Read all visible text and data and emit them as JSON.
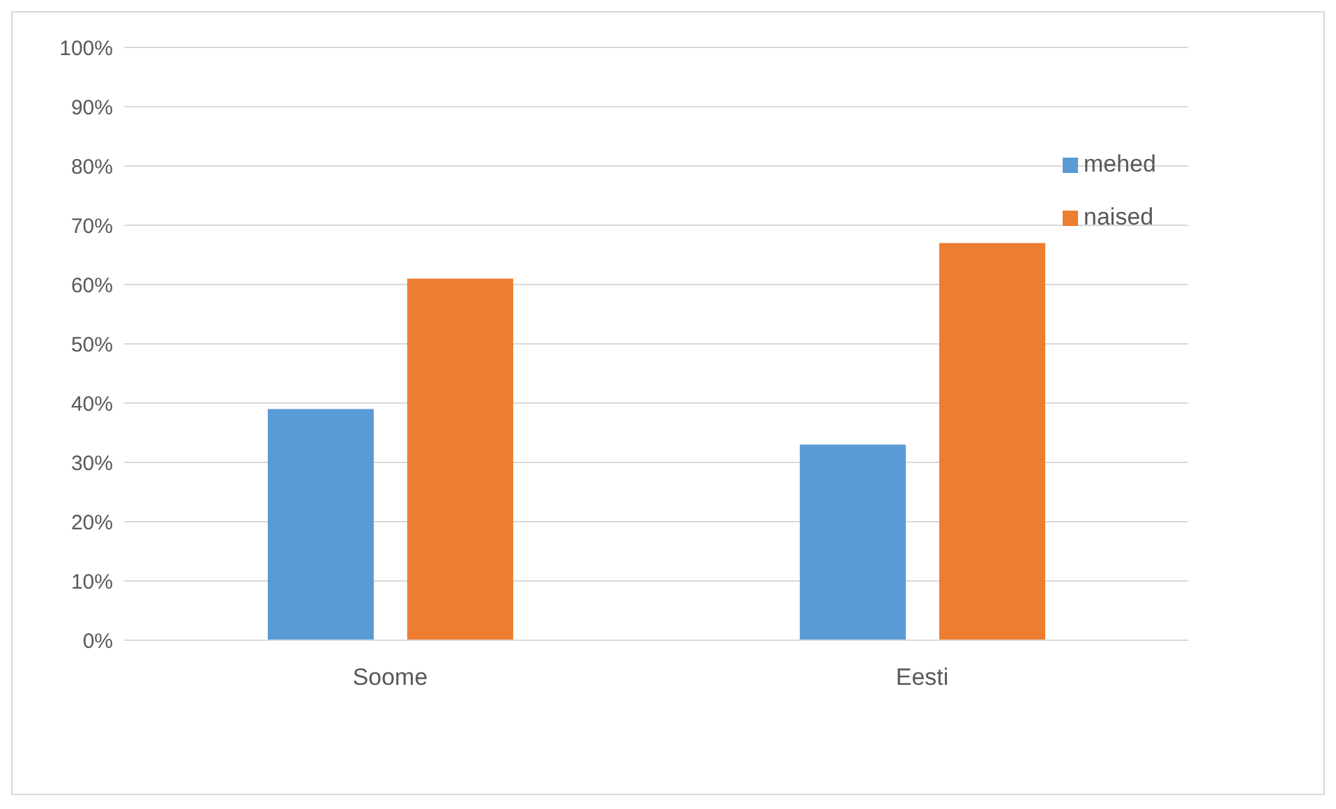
{
  "chart_data": {
    "type": "bar",
    "categories": [
      "Soome",
      "Eesti"
    ],
    "series": [
      {
        "name": "mehed",
        "color": "#5b9bd5",
        "values": [
          39,
          33
        ]
      },
      {
        "name": "naised",
        "color": "#ed7d31",
        "values": [
          61,
          67
        ]
      }
    ],
    "ylim": [
      0,
      100
    ],
    "yticks": [
      {
        "value": 0,
        "label": "0%"
      },
      {
        "value": 10,
        "label": "10%"
      },
      {
        "value": 20,
        "label": "20%"
      },
      {
        "value": 30,
        "label": "30%"
      },
      {
        "value": 40,
        "label": "40%"
      },
      {
        "value": 50,
        "label": "50%"
      },
      {
        "value": 60,
        "label": "60%"
      },
      {
        "value": 70,
        "label": "70%"
      },
      {
        "value": 80,
        "label": "80%"
      },
      {
        "value": 90,
        "label": "90%"
      },
      {
        "value": 100,
        "label": "100%"
      }
    ],
    "grid": "y",
    "legend": "top right"
  }
}
